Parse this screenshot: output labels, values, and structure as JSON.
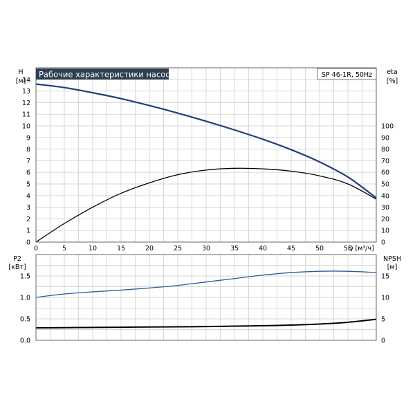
{
  "chart_data": [
    {
      "type": "line",
      "title": "Рабочие характеристики насоса",
      "model_label": "SP 46-1R, 50Hz",
      "title_bg_color": "#2f3f52",
      "xlabel": "Q [м³/ч]",
      "xlim": [
        0,
        60
      ],
      "xticks": [
        0,
        5,
        10,
        15,
        20,
        25,
        30,
        35,
        40,
        45,
        50,
        55
      ],
      "left_axis": {
        "label_top": "H",
        "label_unit": "[м]",
        "ylim": [
          0,
          15
        ],
        "ticks": [
          0,
          1,
          2,
          3,
          4,
          5,
          6,
          7,
          8,
          9,
          10,
          11,
          12,
          13,
          14
        ]
      },
      "right_axis": {
        "label_top": "eta",
        "label_unit": "[%]",
        "ylim": [
          0,
          150
        ],
        "ticks": [
          0,
          10,
          20,
          30,
          40,
          50,
          60,
          70,
          80,
          90,
          100
        ]
      },
      "grid": true,
      "series": [
        {
          "axis": "left",
          "color": "#1f3f7a",
          "x": [
            0,
            5,
            10,
            15,
            20,
            25,
            30,
            35,
            40,
            45,
            50,
            55,
            60
          ],
          "y": [
            13.6,
            13.3,
            12.85,
            12.35,
            11.75,
            11.1,
            10.4,
            9.65,
            8.85,
            7.95,
            6.9,
            5.6,
            3.8
          ]
        },
        {
          "axis": "right",
          "color": "#000000",
          "x": [
            0,
            5,
            10,
            15,
            20,
            25,
            30,
            35,
            40,
            45,
            50,
            55,
            60
          ],
          "y": [
            0,
            16,
            30,
            42,
            51,
            58,
            62,
            63.5,
            63,
            61,
            57,
            50,
            37
          ]
        }
      ]
    },
    {
      "type": "line",
      "xlim": [
        0,
        60
      ],
      "left_axis": {
        "label_top": "P2",
        "label_unit": "[кВт]",
        "ylim": [
          0,
          2.0
        ],
        "ticks": [
          "0.0",
          "0.5",
          "1.0",
          "1.5"
        ]
      },
      "right_axis": {
        "label_top": "NPSH",
        "label_unit": "[м]",
        "ylim": [
          0,
          20
        ],
        "ticks": [
          "0",
          "5",
          "10",
          "15"
        ]
      },
      "grid": true,
      "series": [
        {
          "axis": "left",
          "color": "#2a5a9a",
          "x": [
            0,
            5,
            10,
            15,
            20,
            25,
            30,
            35,
            40,
            45,
            50,
            55,
            60
          ],
          "y": [
            1.0,
            1.08,
            1.13,
            1.17,
            1.22,
            1.28,
            1.36,
            1.44,
            1.52,
            1.58,
            1.61,
            1.61,
            1.58
          ]
        },
        {
          "axis": "left",
          "color": "#000000",
          "x": [
            0,
            5,
            10,
            15,
            20,
            25,
            30,
            35,
            40,
            45,
            50,
            55,
            60
          ],
          "y": [
            0.29,
            0.295,
            0.3,
            0.305,
            0.31,
            0.315,
            0.32,
            0.33,
            0.34,
            0.355,
            0.38,
            0.42,
            0.49
          ]
        }
      ]
    }
  ]
}
